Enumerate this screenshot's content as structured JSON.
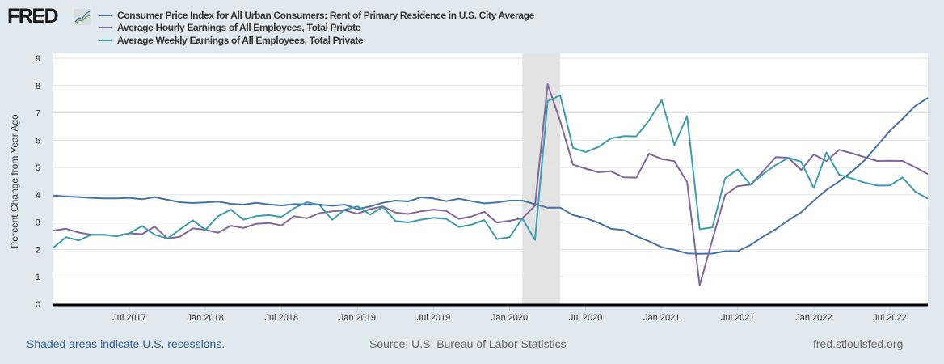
{
  "logo": {
    "text": "FRED"
  },
  "footer": {
    "recession_note": "Shaded areas indicate U.S. recessions.",
    "source": "Source: U.S. Bureau of Labor Statistics",
    "site": "fred.stlouisfed.org"
  },
  "chart_data": {
    "type": "line",
    "title": "",
    "ylabel": "Percent Change from Year Ago",
    "xlabel": "",
    "ylim": [
      0,
      9
    ],
    "yticks": [
      0,
      1,
      2,
      3,
      4,
      5,
      6,
      7,
      8,
      9
    ],
    "grid": true,
    "legend_position": "top-left",
    "x_start": "2017-01",
    "x_end": "2022-10",
    "frequency": "monthly",
    "xticks": [
      {
        "month": "2017-07",
        "label": "Jul 2017"
      },
      {
        "month": "2018-01",
        "label": "Jan 2018"
      },
      {
        "month": "2018-07",
        "label": "Jul 2018"
      },
      {
        "month": "2019-01",
        "label": "Jan 2019"
      },
      {
        "month": "2019-07",
        "label": "Jul 2019"
      },
      {
        "month": "2020-01",
        "label": "Jan 2020"
      },
      {
        "month": "2020-07",
        "label": "Jul 2020"
      },
      {
        "month": "2021-01",
        "label": "Jan 2021"
      },
      {
        "month": "2021-07",
        "label": "Jul 2021"
      },
      {
        "month": "2022-01",
        "label": "Jan 2022"
      },
      {
        "month": "2022-07",
        "label": "Jul 2022"
      }
    ],
    "recessions": [
      {
        "start": "2020-02",
        "end": "2020-04"
      }
    ],
    "series": [
      {
        "name": "Consumer Price Index for All Urban Consumers: Rent of Primary Residence in U.S. City Average",
        "color": "#4572a7",
        "values": [
          3.97,
          3.94,
          3.92,
          3.89,
          3.87,
          3.87,
          3.89,
          3.84,
          3.92,
          3.82,
          3.73,
          3.7,
          3.72,
          3.75,
          3.67,
          3.64,
          3.71,
          3.65,
          3.61,
          3.66,
          3.65,
          3.64,
          3.6,
          3.64,
          3.48,
          3.58,
          3.71,
          3.79,
          3.76,
          3.91,
          3.87,
          3.77,
          3.86,
          3.77,
          3.69,
          3.72,
          3.79,
          3.79,
          3.66,
          3.53,
          3.53,
          3.26,
          3.15,
          2.98,
          2.76,
          2.71,
          2.49,
          2.3,
          2.08,
          1.99,
          1.86,
          1.84,
          1.85,
          1.94,
          1.94,
          2.16,
          2.47,
          2.74,
          3.07,
          3.36,
          3.79,
          4.18,
          4.49,
          4.85,
          5.26,
          5.8,
          6.34,
          6.78,
          7.25,
          7.55
        ]
      },
      {
        "name": "Average Hourly Earnings of All Employees, Total Private",
        "color": "#7f669d",
        "values": [
          2.69,
          2.76,
          2.62,
          2.54,
          2.54,
          2.5,
          2.59,
          2.56,
          2.84,
          2.4,
          2.47,
          2.77,
          2.72,
          2.61,
          2.87,
          2.79,
          2.94,
          2.97,
          2.88,
          3.22,
          3.14,
          3.33,
          3.4,
          3.43,
          3.31,
          3.48,
          3.58,
          3.35,
          3.3,
          3.4,
          3.46,
          3.41,
          3.12,
          3.21,
          3.38,
          2.98,
          3.05,
          3.14,
          3.6,
          8.05,
          6.69,
          5.11,
          4.96,
          4.83,
          4.86,
          4.64,
          4.63,
          5.5,
          5.31,
          5.23,
          4.47,
          0.69,
          2.35,
          3.99,
          4.32,
          4.37,
          4.86,
          5.38,
          5.36,
          4.91,
          5.48,
          5.23,
          5.65,
          5.52,
          5.38,
          5.24,
          5.25,
          5.24,
          5.01,
          4.76
        ]
      },
      {
        "name": "Average Weekly Earnings of All Employees, Total Private",
        "color": "#3d9cad",
        "values": [
          2.07,
          2.45,
          2.33,
          2.54,
          2.54,
          2.48,
          2.59,
          2.86,
          2.54,
          2.4,
          2.74,
          3.07,
          2.72,
          3.22,
          3.46,
          3.09,
          3.22,
          3.26,
          3.19,
          3.51,
          3.73,
          3.63,
          3.09,
          3.46,
          3.58,
          3.28,
          3.56,
          3.04,
          2.99,
          3.09,
          3.16,
          3.12,
          2.82,
          2.91,
          3.08,
          2.38,
          2.45,
          3.14,
          2.35,
          7.43,
          7.64,
          5.72,
          5.57,
          5.75,
          6.07,
          6.15,
          6.14,
          6.72,
          7.47,
          5.82,
          6.88,
          2.74,
          2.81,
          4.6,
          4.93,
          4.38,
          4.76,
          5.09,
          5.36,
          5.21,
          4.25,
          5.55,
          4.74,
          4.6,
          4.45,
          4.34,
          4.34,
          4.64,
          4.12,
          3.86
        ]
      }
    ]
  }
}
